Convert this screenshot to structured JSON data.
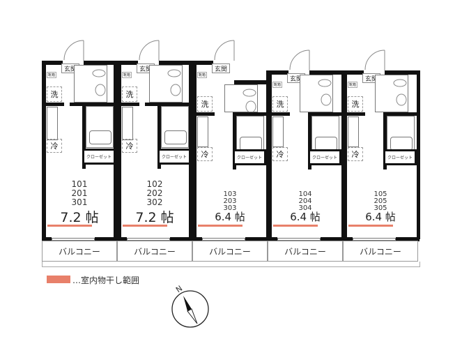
{
  "units": [
    {
      "rooms": [
        "101",
        "201",
        "301"
      ],
      "area": "7.2 帖",
      "variant": "large"
    },
    {
      "rooms": [
        "102",
        "202",
        "302"
      ],
      "area": "7.2 帖",
      "variant": "large"
    },
    {
      "rooms": [
        "103",
        "203",
        "303"
      ],
      "area": "6.4 帖",
      "variant": "small"
    },
    {
      "rooms": [
        "104",
        "204",
        "304"
      ],
      "area": "6.4 帖",
      "variant": "small"
    },
    {
      "rooms": [
        "105",
        "205",
        "305"
      ],
      "area": "6.4 帖",
      "variant": "small"
    }
  ],
  "labels": {
    "genkan": "玄関",
    "shoebox": "靴箱",
    "washer": "洗",
    "fridge": "冷",
    "closet": "クローゼット",
    "balcony": "バルコニー"
  },
  "legend": {
    "text": "…室内物干し範囲",
    "color": "#e8806a"
  },
  "compass": {
    "label": "N"
  }
}
